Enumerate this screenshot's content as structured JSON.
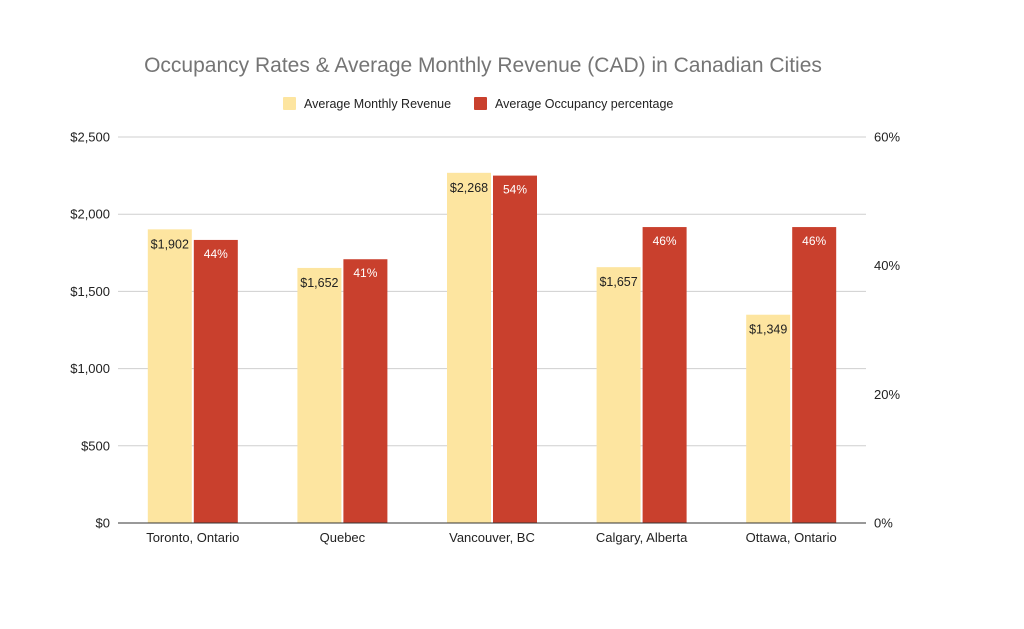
{
  "chart_data": {
    "type": "bar",
    "title": "Occupancy Rates & Average Monthly Revenue (CAD) in Canadian Cities",
    "categories": [
      "Toronto, Ontario",
      "Quebec",
      "Vancouver, BC",
      "Calgary, Alberta",
      "Ottawa, Ontario"
    ],
    "series": [
      {
        "name": "Average Monthly Revenue",
        "axis": "left",
        "color": "#fde5a0",
        "values": [
          1902,
          1652,
          2268,
          1657,
          1349
        ],
        "labels": [
          "$1,902",
          "$1,652",
          "$2,268",
          "$1,657",
          "$1,349"
        ]
      },
      {
        "name": "Average Occupancy percentage",
        "axis": "right",
        "color": "#c9402d",
        "values": [
          44,
          41,
          54,
          46,
          46
        ],
        "labels": [
          "44%",
          "41%",
          "54%",
          "46%",
          "46%"
        ]
      }
    ],
    "y_left": {
      "ylim": [
        0,
        2500
      ],
      "ticks": [
        0,
        500,
        1000,
        1500,
        2000,
        2500
      ],
      "tick_labels": [
        "$0",
        "$500",
        "$1,000",
        "$1,500",
        "$2,000",
        "$2,500"
      ]
    },
    "y_right": {
      "ylim": [
        0,
        60
      ],
      "ticks": [
        0,
        20,
        40,
        60
      ],
      "tick_labels": [
        "0%",
        "20%",
        "40%",
        "60%"
      ]
    },
    "grid": true,
    "legend_position": "top"
  }
}
